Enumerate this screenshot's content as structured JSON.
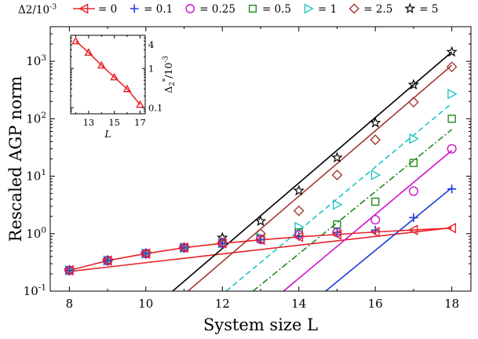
{
  "chart_data": {
    "type": "scatter",
    "xlabel": "System size L",
    "ylabel": "Rescaled AGP norm",
    "xlim": [
      7.5,
      18.5
    ],
    "ylim": [
      0.1,
      4000
    ],
    "yscale": "log",
    "xticks": [
      "8",
      "10",
      "12",
      "14",
      "16",
      "18"
    ],
    "yticks": [
      "10^{-1}",
      "10^{0}",
      "10^{1}",
      "10^{2}",
      "10^{3}"
    ],
    "legend": {
      "title": "Δ2/10^{-3}",
      "placement": "top, outside plot area"
    },
    "series": [
      {
        "name": "= 0",
        "color": "#e8222a",
        "marker": "triangle-left",
        "line": "solid",
        "x": [
          8,
          9,
          10,
          11,
          12,
          13,
          14,
          15,
          16,
          17,
          18
        ],
        "y": [
          0.23,
          0.34,
          0.45,
          0.57,
          0.68,
          0.78,
          0.88,
          0.97,
          1.07,
          1.16,
          1.25
        ],
        "fit": {
          "x": [
            8,
            18
          ],
          "y": [
            0.22,
            1.27
          ]
        }
      },
      {
        "name": "= 0.1",
        "color": "#1f3ddb",
        "marker": "plus",
        "line": "solid",
        "x": [
          8,
          9,
          10,
          11,
          12,
          13,
          14,
          15,
          16,
          17,
          18
        ],
        "y": [
          0.23,
          0.34,
          0.45,
          0.57,
          0.68,
          0.78,
          0.9,
          1.05,
          1.15,
          1.9,
          6.0
        ],
        "fit": {
          "x": [
            14.7,
            18
          ],
          "y": [
            0.1,
            6.3
          ]
        }
      },
      {
        "name": "= 0.25",
        "color": "#cc11cc",
        "marker": "circle",
        "line": "solid",
        "x": [
          8,
          9,
          10,
          11,
          12,
          13,
          14,
          15,
          16,
          17,
          18
        ],
        "y": [
          0.23,
          0.34,
          0.45,
          0.57,
          0.68,
          0.8,
          0.95,
          1.05,
          1.75,
          5.5,
          30
        ],
        "fit": {
          "x": [
            13.6,
            18
          ],
          "y": [
            0.1,
            28
          ]
        }
      },
      {
        "name": "= 0.5",
        "color": "#1e8a1e",
        "marker": "square",
        "line": "dashdot",
        "x": [
          8,
          9,
          10,
          11,
          12,
          13,
          14,
          15,
          16,
          17,
          18
        ],
        "y": [
          0.23,
          0.34,
          0.45,
          0.57,
          0.68,
          0.82,
          1.05,
          1.45,
          3.6,
          17,
          100
        ],
        "fit": {
          "x": [
            12.8,
            18
          ],
          "y": [
            0.1,
            65
          ]
        }
      },
      {
        "name": "= 1",
        "color": "#22c4c4",
        "marker": "triangle-right",
        "line": "dashed",
        "x": [
          8,
          9,
          10,
          11,
          12,
          13,
          14,
          15,
          16,
          17,
          18
        ],
        "y": [
          0.23,
          0.34,
          0.45,
          0.57,
          0.68,
          0.85,
          1.3,
          3.2,
          10.5,
          45,
          270
        ],
        "fit": {
          "x": [
            12.1,
            18
          ],
          "y": [
            0.1,
            185
          ]
        }
      },
      {
        "name": "= 2.5",
        "color": "#a33a33",
        "marker": "diamond",
        "line": "solid",
        "x": [
          8,
          9,
          10,
          11,
          12,
          13,
          14,
          15,
          16,
          17,
          18
        ],
        "y": [
          0.23,
          0.34,
          0.45,
          0.57,
          0.7,
          1.0,
          2.5,
          10.5,
          43,
          195,
          800
        ],
        "fit": {
          "x": [
            11.1,
            18
          ],
          "y": [
            0.1,
            850
          ]
        }
      },
      {
        "name": "= 5",
        "color": "#000000",
        "marker": "star",
        "line": "solid",
        "x": [
          8,
          9,
          10,
          11,
          12,
          13,
          14,
          15,
          16,
          17,
          18
        ],
        "y": [
          0.23,
          0.34,
          0.45,
          0.57,
          0.85,
          1.65,
          5.6,
          21,
          85,
          390,
          1450
        ],
        "fit": {
          "x": [
            10.7,
            18
          ],
          "y": [
            0.1,
            1450
          ]
        }
      }
    ],
    "inset": {
      "xlabel": "L",
      "ylabel": "Δ2*/10^{-3}",
      "yscale": "log",
      "xlim": [
        11.6,
        17.4
      ],
      "ylim": [
        0.07,
        7
      ],
      "xticks": [
        "13",
        "15",
        "17"
      ],
      "yticks": [
        "0.1",
        "1",
        "4"
      ],
      "series": {
        "color": "#e8222a",
        "marker": "triangle-up",
        "x": [
          12,
          13,
          14,
          15,
          16,
          17
        ],
        "y": [
          5.0,
          2.55,
          1.2,
          0.6,
          0.3,
          0.12
        ]
      }
    }
  }
}
